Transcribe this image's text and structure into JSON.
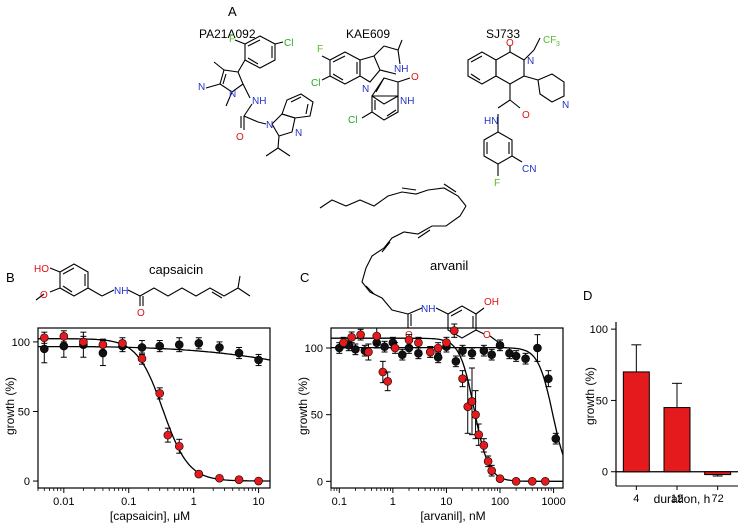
{
  "panels": {
    "A": "A",
    "B": "B",
    "C": "C",
    "D": "D"
  },
  "compounds": [
    "PA21A092",
    "KAE609",
    "SJ733"
  ],
  "structure_labels": {
    "capsaicin": "capsaicin",
    "arvanil": "arvanil"
  },
  "atom_labels": {
    "F": "F",
    "Cl": "Cl",
    "N": "N",
    "NH": "NH",
    "HN": "HN",
    "O": "O",
    "OH": "OH",
    "HO": "HO",
    "CF3": "CF",
    "three": "3",
    "CN": "CN"
  },
  "colors": {
    "red": "#e41a1c",
    "black": "#111111",
    "nitrogen": "#2233cc",
    "oxygen": "#dd1111",
    "halogen_f": "#55bb22",
    "halogen_cl": "#22aa22"
  },
  "chart_data": [
    {
      "panel": "B",
      "type": "scatter",
      "xlabel": "[capsaicin], μM",
      "ylabel": "growth  (%)",
      "x_scale": "log",
      "xlim": [
        0.004,
        15
      ],
      "ylim": [
        -5,
        110
      ],
      "x_ticks": [
        "0.01",
        "0.1",
        "1",
        "10"
      ],
      "x_tick_values": [
        0.01,
        0.1,
        1,
        10
      ],
      "y_ticks": [
        "0",
        "50",
        "100"
      ],
      "y_tick_values": [
        0,
        50,
        100
      ],
      "series": [
        {
          "color": "#111111",
          "x": [
            0.005,
            0.01,
            0.02,
            0.04,
            0.08,
            0.16,
            0.3,
            0.6,
            1.2,
            2.5,
            5,
            10
          ],
          "y": [
            95,
            97,
            98,
            92,
            97,
            96,
            97,
            98,
            99,
            96,
            92,
            87
          ],
          "err": [
            10,
            8,
            9,
            9,
            4,
            5,
            4,
            5,
            4,
            4,
            4,
            4
          ]
        },
        {
          "color": "#e41a1c",
          "x": [
            0.005,
            0.01,
            0.02,
            0.04,
            0.08,
            0.16,
            0.3,
            0.4,
            0.6,
            1.2,
            2.5,
            5,
            10
          ],
          "y": [
            103,
            104,
            100,
            98,
            99,
            88,
            63,
            33,
            25,
            5,
            2,
            1,
            0
          ],
          "err": [
            4,
            4,
            4,
            4,
            4,
            4,
            4,
            5,
            5,
            2,
            1,
            1,
            1
          ]
        }
      ]
    },
    {
      "panel": "C",
      "type": "scatter",
      "xlabel": "[arvanil], nM",
      "ylabel": "growth  (%)",
      "x_scale": "log",
      "xlim": [
        0.07,
        1500
      ],
      "ylim": [
        -5,
        115
      ],
      "x_ticks": [
        "0.1",
        "1",
        "10",
        "100",
        "1000"
      ],
      "x_tick_values": [
        0.1,
        1,
        10,
        100,
        1000
      ],
      "y_ticks": [
        "0",
        "50",
        "100"
      ],
      "y_tick_values": [
        0,
        50,
        100
      ],
      "series": [
        {
          "color": "#111111",
          "x": [
            0.1,
            0.15,
            0.2,
            0.3,
            0.5,
            0.7,
            1,
            1.5,
            2,
            3,
            5,
            7,
            10,
            15,
            20,
            30,
            50,
            70,
            100,
            150,
            200,
            300,
            500,
            800,
            1100
          ],
          "y": [
            100,
            102,
            99,
            98,
            104,
            101,
            104,
            95,
            100,
            96,
            97,
            93,
            101,
            90,
            98,
            96,
            98,
            95,
            102,
            96,
            94,
            92,
            100,
            77,
            32
          ],
          "err": [
            4,
            4,
            4,
            4,
            4,
            4,
            4,
            4,
            4,
            4,
            4,
            4,
            4,
            4,
            4,
            4,
            4,
            4,
            4,
            4,
            4,
            4,
            10,
            6,
            4
          ]
        },
        {
          "color": "#e41a1c",
          "x": [
            0.12,
            0.17,
            0.25,
            0.35,
            0.5,
            0.65,
            0.8,
            1.1,
            2,
            3,
            5,
            7,
            10,
            14,
            20,
            25,
            30,
            35,
            40,
            50,
            60,
            70,
            100,
            200,
            400,
            700
          ],
          "y": [
            104,
            108,
            110,
            97,
            109,
            82,
            75,
            100,
            106,
            104,
            97,
            100,
            104,
            113,
            77,
            56,
            60,
            50,
            35,
            27,
            15,
            8,
            2,
            0,
            0,
            0
          ],
          "err": [
            4,
            4,
            4,
            6,
            6,
            8,
            7,
            4,
            4,
            4,
            4,
            4,
            4,
            5,
            6,
            20,
            25,
            18,
            8,
            5,
            4,
            4,
            2,
            1,
            1,
            1
          ]
        }
      ]
    },
    {
      "panel": "D",
      "type": "bar",
      "xlabel": "duration, h",
      "ylabel": "growth  (%)",
      "ylim": [
        -10,
        105
      ],
      "y_ticks": [
        "0",
        "50",
        "100"
      ],
      "y_tick_values": [
        0,
        50,
        100
      ],
      "categories": [
        "4",
        "12",
        "72"
      ],
      "values": [
        70,
        45,
        -2
      ],
      "err": [
        19,
        17,
        1
      ],
      "color": "#e41a1c"
    }
  ]
}
